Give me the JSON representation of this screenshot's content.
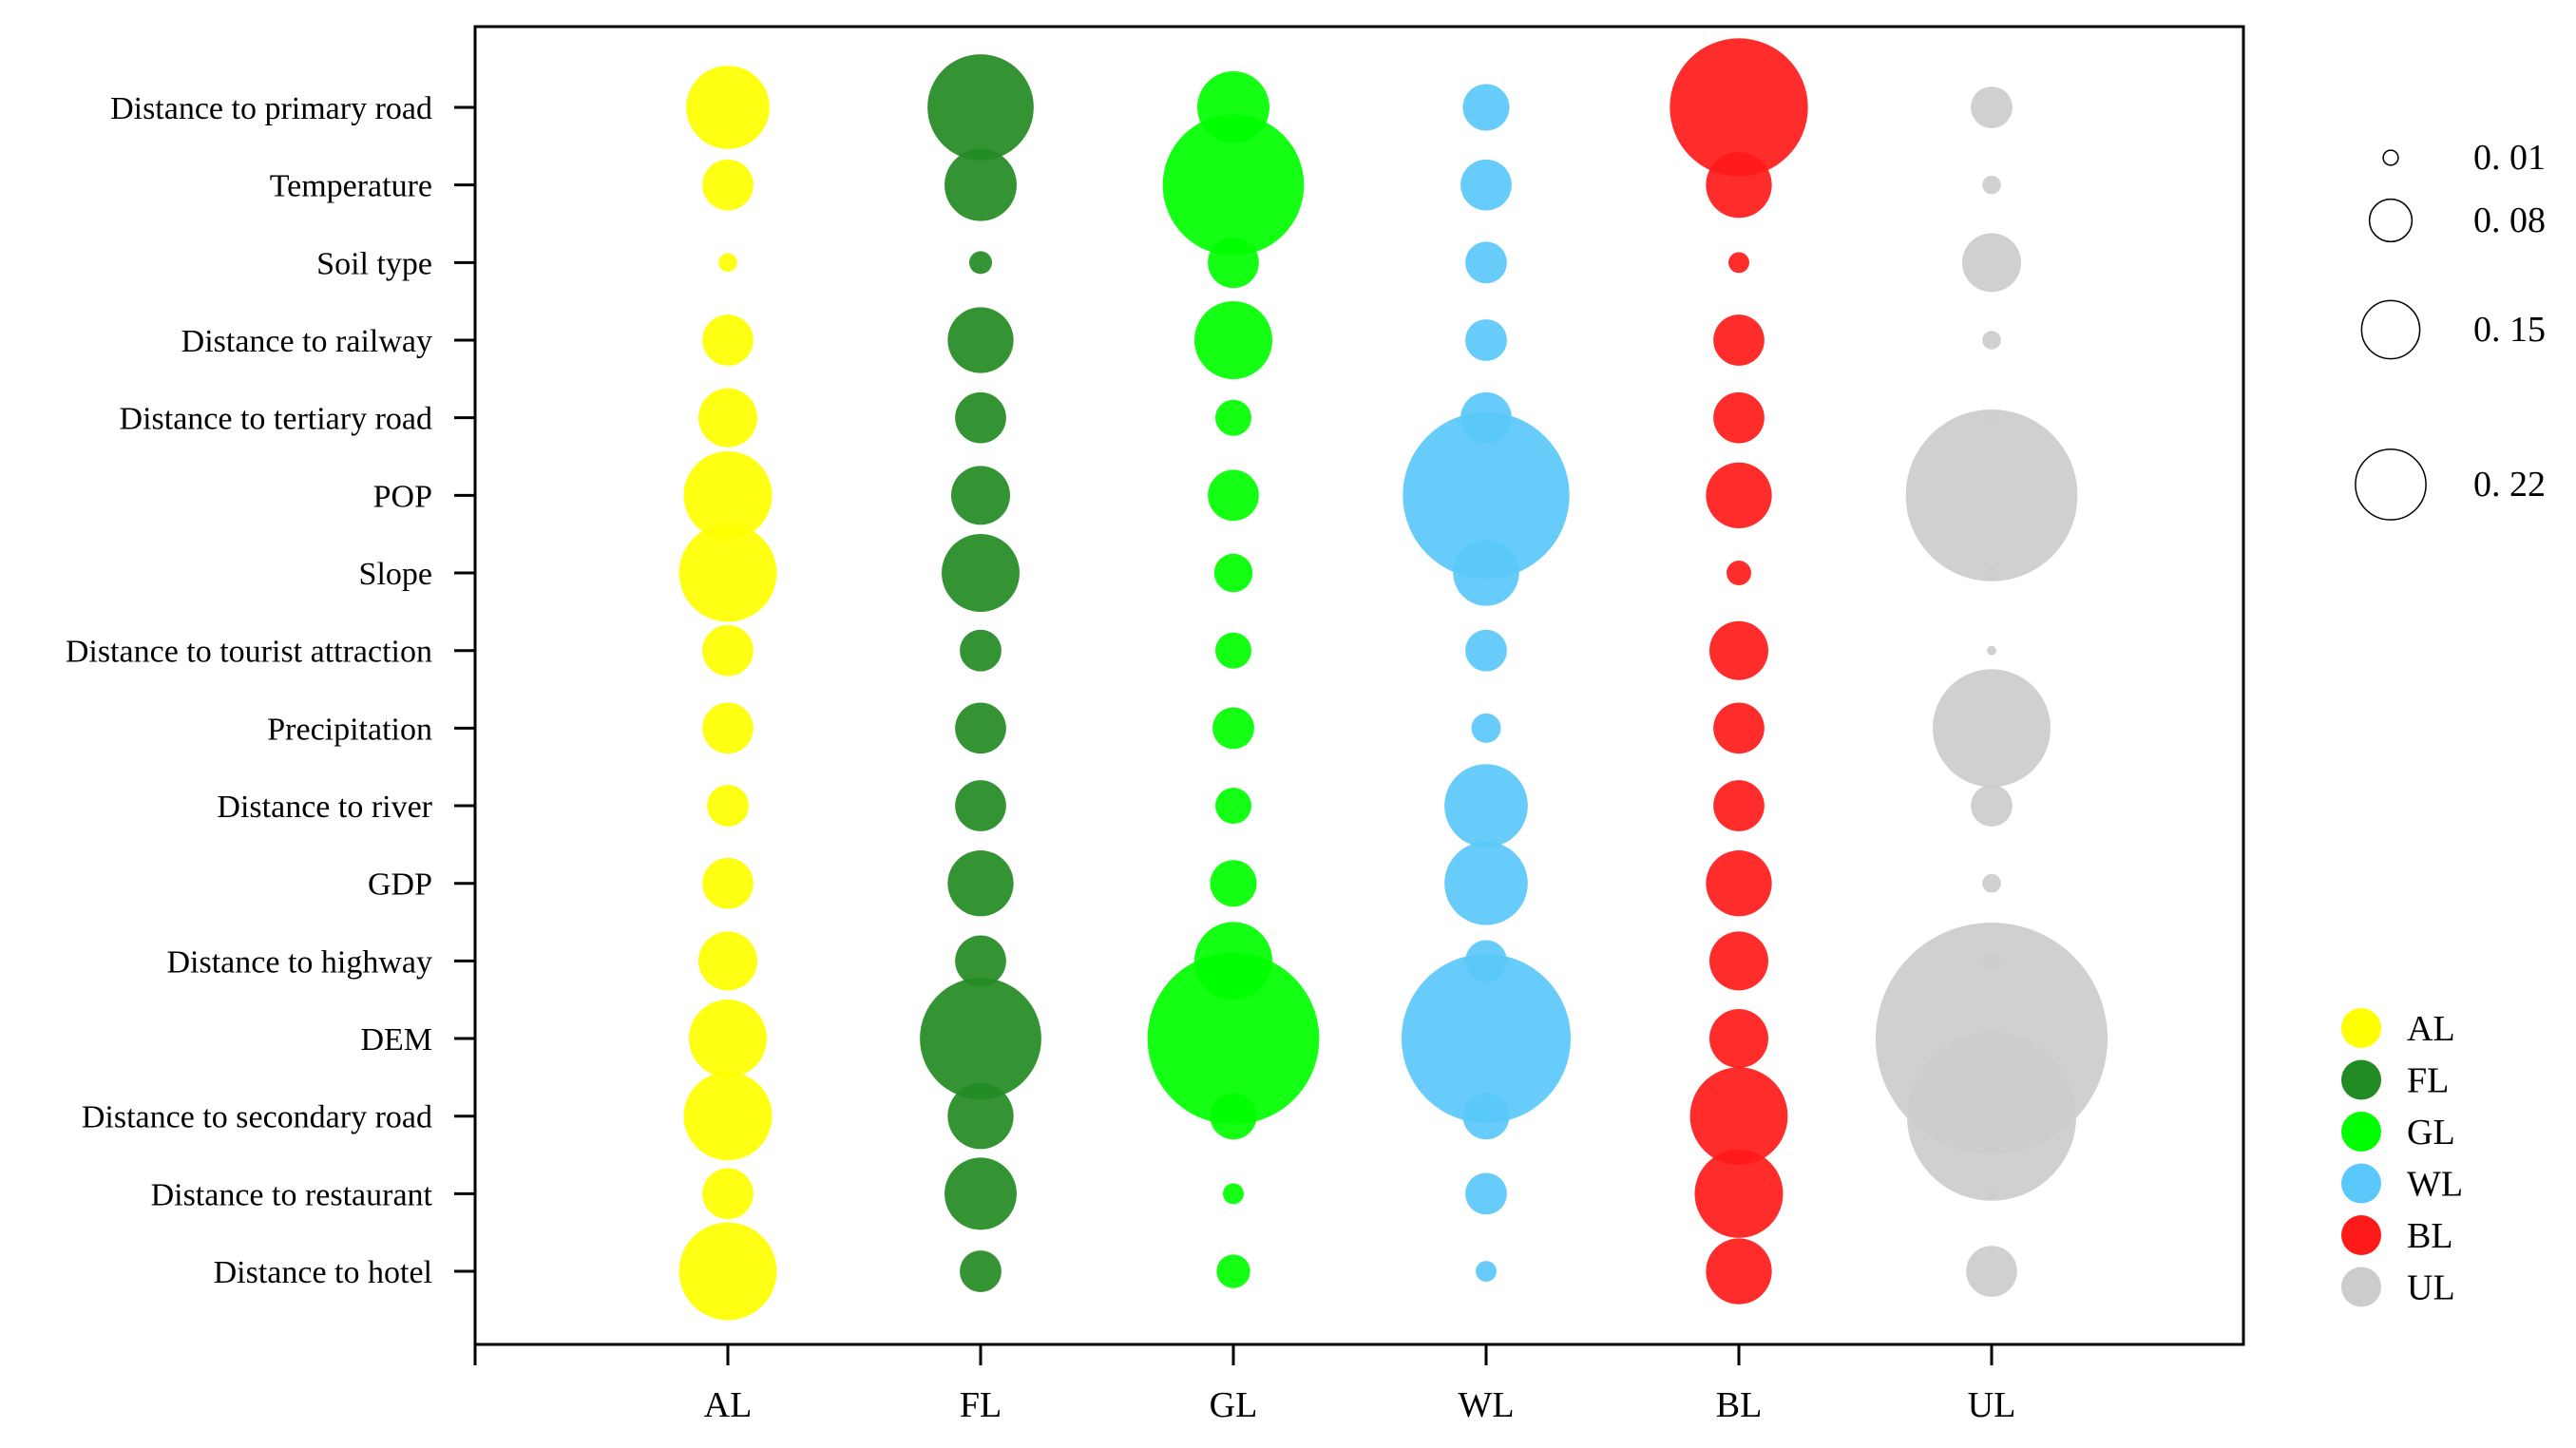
{
  "chart_data": {
    "type": "scatter",
    "subtype": "bubble-matrix",
    "title": "",
    "xlabel": "",
    "ylabel": "",
    "grid": false,
    "categories_x": [
      "AL",
      "FL",
      "GL",
      "WL",
      "BL",
      "UL"
    ],
    "categories_y": [
      "Distance to primary road",
      "Temperature",
      "Soil type",
      "Distance to railway",
      "Distance to tertiary road",
      "POP",
      "Slope",
      "Distance to tourist attraction",
      "Precipitation",
      "Distance to river",
      "GDP",
      "Distance to highway",
      "DEM",
      "Distance to secondary road",
      "Distance to restaurant",
      "Distance to hotel"
    ],
    "series": [
      {
        "name": "AL",
        "color": "#ffff00",
        "values": [
          0.08,
          0.03,
          0.004,
          0.03,
          0.04,
          0.09,
          0.11,
          0.03,
          0.03,
          0.02,
          0.03,
          0.04,
          0.07,
          0.09,
          0.03,
          0.11
        ]
      },
      {
        "name": "FL",
        "color": "#238b23",
        "values": [
          0.13,
          0.06,
          0.006,
          0.05,
          0.03,
          0.04,
          0.07,
          0.02,
          0.03,
          0.03,
          0.05,
          0.03,
          0.17,
          0.05,
          0.06,
          0.02
        ]
      },
      {
        "name": "GL",
        "color": "#00ff00",
        "values": [
          0.06,
          0.23,
          0.03,
          0.07,
          0.015,
          0.03,
          0.017,
          0.015,
          0.02,
          0.015,
          0.025,
          0.07,
          0.34,
          0.025,
          0.005,
          0.013
        ]
      },
      {
        "name": "WL",
        "color": "#5ac8fa",
        "values": [
          0.025,
          0.03,
          0.02,
          0.02,
          0.03,
          0.32,
          0.05,
          0.02,
          0.01,
          0.08,
          0.08,
          0.02,
          0.33,
          0.025,
          0.02,
          0.005
        ]
      },
      {
        "name": "BL",
        "color": "#ff1a1a",
        "values": [
          0.22,
          0.05,
          0.005,
          0.03,
          0.03,
          0.05,
          0.007,
          0.04,
          0.03,
          0.03,
          0.05,
          0.04,
          0.04,
          0.11,
          0.09,
          0.05
        ]
      },
      {
        "name": "UL",
        "color": "#cccccc",
        "values": [
          0.02,
          0.004,
          0.04,
          0.004,
          0.002,
          0.34,
          0.002,
          0.001,
          0.16,
          0.02,
          0.004,
          0.004,
          0.62,
          0.33,
          0.0005,
          0.03
        ]
      }
    ],
    "size_legend": [
      {
        "label": "0. 01",
        "value": 0.01
      },
      {
        "label": "0. 08",
        "value": 0.08
      },
      {
        "label": "0. 15",
        "value": 0.15
      },
      {
        "label": "0. 22",
        "value": 0.22
      }
    ],
    "legend_position": "right"
  }
}
